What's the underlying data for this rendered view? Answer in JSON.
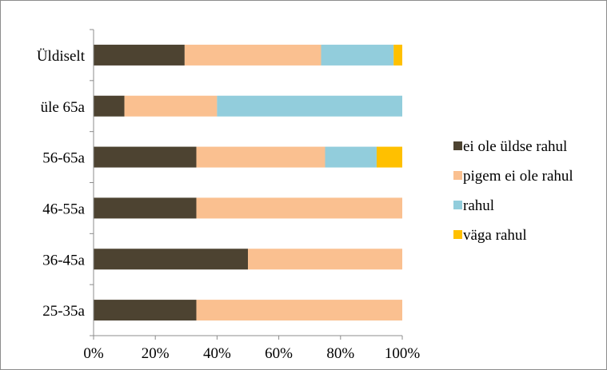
{
  "chart_data": {
    "type": "bar",
    "orientation": "horizontal",
    "stacked": true,
    "percent": true,
    "categories": [
      "Üldiselt",
      "üle 65a",
      "56-65a",
      "46-55a",
      "36-45a",
      "25-35a"
    ],
    "series": [
      {
        "name": "ei ole üldse rahul",
        "color": "#4d4331",
        "values": [
          29.5,
          10,
          33.3,
          33.3,
          50,
          33.3
        ]
      },
      {
        "name": "pigem ei ole rahul",
        "color": "#fac090",
        "values": [
          44.2,
          30,
          41.7,
          66.7,
          50,
          66.7
        ]
      },
      {
        "name": "rahul",
        "color": "#92cddc",
        "values": [
          23.5,
          60,
          16.7,
          0,
          0,
          0
        ]
      },
      {
        "name": "väga rahul",
        "color": "#ffc000",
        "values": [
          2.8,
          0,
          8.3,
          0,
          0,
          0
        ]
      }
    ],
    "xticks": [
      "0%",
      "20%",
      "40%",
      "60%",
      "80%",
      "100%"
    ],
    "xlim": [
      0,
      100
    ],
    "grid": false,
    "legend_position": "right"
  }
}
